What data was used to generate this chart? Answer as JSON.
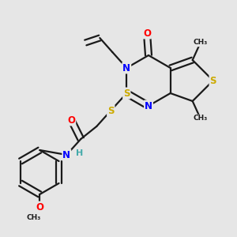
{
  "background_color": "#e6e6e6",
  "bond_color": "#1a1a1a",
  "atom_colors": {
    "N": "#0000ff",
    "O": "#ff0000",
    "S": "#ccaa00",
    "C": "#1a1a1a",
    "H": "#44aaaa"
  },
  "figsize": [
    3.0,
    3.0
  ],
  "dpi": 100,
  "xlim": [
    0,
    300
  ],
  "ylim": [
    0,
    300
  ]
}
